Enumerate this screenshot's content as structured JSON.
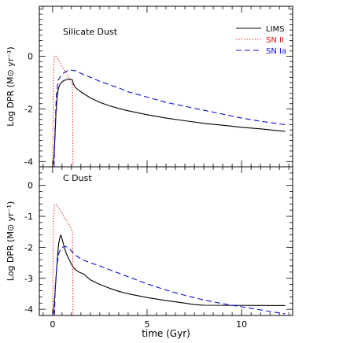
{
  "chart_data": [
    {
      "type": "line",
      "title": "Silicate Dust",
      "ylabel": "Log DPR (M⊙ yr⁻¹)",
      "xlim": [
        -0.7,
        12.7
      ],
      "ylim": [
        -4.2,
        1.9
      ],
      "xticks": [
        0,
        5,
        10
      ],
      "yticks": [
        0,
        -2,
        -4
      ],
      "legend": {
        "position": "top-right",
        "entries": [
          "LIMS",
          "SN II",
          "SN Ia"
        ]
      },
      "series": [
        {
          "name": "LIMS",
          "color": "#000000",
          "dash": "solid",
          "x": [
            0.05,
            0.12,
            0.18,
            0.25,
            0.32,
            0.4,
            0.5,
            0.6,
            0.7,
            0.8,
            0.9,
            1.0,
            1.05,
            1.1,
            1.2,
            1.4,
            1.7,
            2.0,
            2.5,
            3.0,
            3.5,
            4.0,
            5.0,
            6.0,
            7.0,
            8.0,
            9.0,
            10.0,
            11.0,
            12.3
          ],
          "y": [
            -4.1,
            -3.2,
            -2.2,
            -1.5,
            -1.2,
            -1.05,
            -0.98,
            -0.92,
            -0.9,
            -0.88,
            -0.87,
            -0.88,
            -0.9,
            -1.05,
            -1.18,
            -1.3,
            -1.45,
            -1.58,
            -1.75,
            -1.88,
            -1.98,
            -2.07,
            -2.22,
            -2.35,
            -2.45,
            -2.55,
            -2.62,
            -2.7,
            -2.76,
            -2.85
          ]
        },
        {
          "name": "SN II",
          "color": "#e01010",
          "dash": "dotted",
          "x": [
            0.0,
            0.02,
            0.05,
            0.1,
            0.15,
            0.2,
            0.25,
            0.3,
            0.4,
            0.5,
            0.6,
            0.7,
            0.8,
            0.9,
            1.0,
            1.05,
            1.07,
            1.08
          ],
          "y": [
            -4.2,
            -3.0,
            -0.5,
            -0.05,
            0.02,
            0.0,
            -0.05,
            -0.12,
            -0.25,
            -0.38,
            -0.5,
            -0.62,
            -0.75,
            -0.88,
            -1.0,
            -1.1,
            -2.5,
            -4.2
          ]
        },
        {
          "name": "SN Ia",
          "color": "#1010d0",
          "dash": "dashed",
          "x": [
            0.08,
            0.12,
            0.2,
            0.3,
            0.5,
            0.7,
            0.9,
            1.2,
            1.5,
            2.0,
            2.5,
            3.0,
            3.5,
            4.0,
            5.0,
            6.0,
            7.0,
            8.0,
            9.0,
            10.0,
            11.0,
            12.3
          ],
          "y": [
            -4.2,
            -3.0,
            -1.5,
            -0.9,
            -0.68,
            -0.58,
            -0.52,
            -0.55,
            -0.65,
            -0.8,
            -0.95,
            -1.08,
            -1.2,
            -1.35,
            -1.55,
            -1.75,
            -1.9,
            -2.05,
            -2.2,
            -2.35,
            -2.47,
            -2.6
          ]
        }
      ]
    },
    {
      "type": "line",
      "title": "C Dust",
      "xlabel": "time (Gyr)",
      "ylabel": "Log DPR (M⊙ yr⁻¹)",
      "xlim": [
        -0.7,
        12.7
      ],
      "ylim": [
        -4.2,
        0.6
      ],
      "xticks": [
        0,
        5,
        10
      ],
      "yticks": [
        0,
        -1,
        -2,
        -3,
        -4
      ],
      "series": [
        {
          "name": "LIMS",
          "color": "#000000",
          "dash": "solid",
          "x": [
            0.05,
            0.15,
            0.25,
            0.32,
            0.38,
            0.43,
            0.5,
            0.6,
            0.7,
            0.8,
            0.9,
            1.0,
            1.1,
            1.2,
            1.4,
            1.7,
            1.8,
            2.0,
            2.5,
            3.0,
            3.5,
            4.0,
            5.0,
            6.0,
            7.0,
            7.5,
            8.0,
            12.3
          ],
          "y": [
            -4.15,
            -3.3,
            -2.4,
            -1.9,
            -1.7,
            -1.6,
            -1.72,
            -1.95,
            -2.15,
            -2.3,
            -2.42,
            -2.55,
            -2.65,
            -2.72,
            -2.8,
            -2.88,
            -2.95,
            -3.05,
            -3.2,
            -3.32,
            -3.42,
            -3.5,
            -3.62,
            -3.72,
            -3.8,
            -3.85,
            -3.87,
            -3.88
          ]
        },
        {
          "name": "SN II",
          "color": "#e01010",
          "dash": "dotted",
          "x": [
            0.0,
            0.02,
            0.05,
            0.1,
            0.15,
            0.2,
            0.3,
            0.4,
            0.5,
            0.6,
            0.7,
            0.8,
            0.9,
            1.0,
            1.05,
            1.07,
            1.08
          ],
          "y": [
            -4.2,
            -3.0,
            -1.0,
            -0.65,
            -0.6,
            -0.62,
            -0.7,
            -0.8,
            -0.9,
            -1.0,
            -1.1,
            -1.2,
            -1.3,
            -1.42,
            -1.5,
            -3.0,
            -4.2
          ]
        },
        {
          "name": "SN Ia",
          "color": "#1010d0",
          "dash": "dashed",
          "x": [
            0.1,
            0.15,
            0.25,
            0.35,
            0.5,
            0.7,
            0.9,
            1.2,
            1.5,
            2.0,
            2.5,
            3.0,
            4.0,
            5.0,
            6.0,
            7.0,
            8.0,
            9.0,
            10.0,
            11.0,
            12.3
          ],
          "y": [
            -4.2,
            -3.2,
            -2.5,
            -2.15,
            -2.0,
            -1.97,
            -2.05,
            -2.25,
            -2.38,
            -2.5,
            -2.6,
            -2.72,
            -2.95,
            -3.18,
            -3.38,
            -3.55,
            -3.7,
            -3.82,
            -3.92,
            -4.02,
            -4.15
          ]
        }
      ]
    }
  ]
}
